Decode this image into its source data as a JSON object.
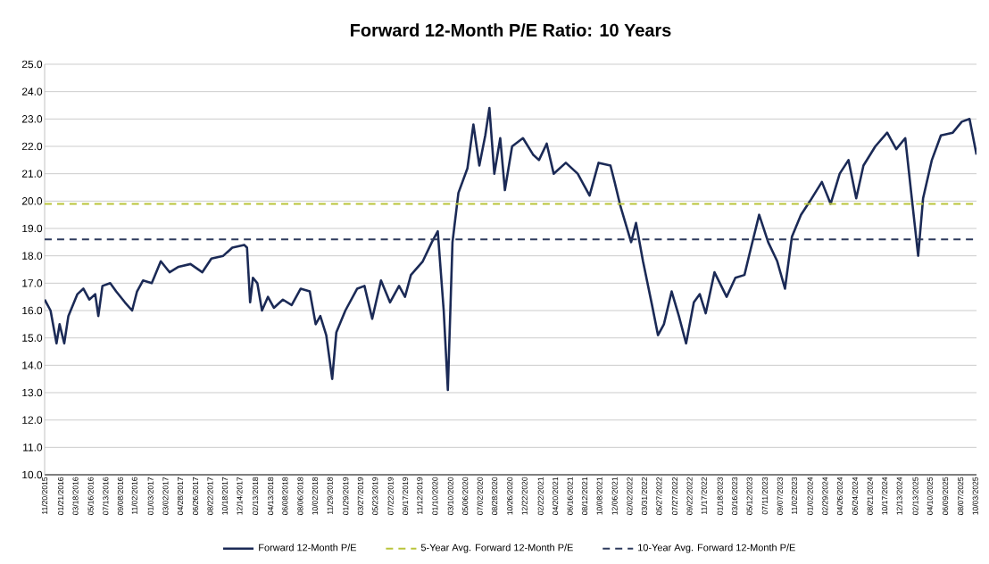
{
  "chart_data": {
    "type": "line",
    "title": "Forward 12-Month P/E Ratio: 10 Years",
    "x": [
      "2015-11-20",
      "2015-12-13",
      "2016-01-05",
      "2016-01-17",
      "2016-02-04",
      "2016-02-20",
      "2016-03-26",
      "2016-04-18",
      "2016-05-11",
      "2016-06-03",
      "2016-06-15",
      "2016-07-01",
      "2016-07-31",
      "2016-08-23",
      "2016-09-26",
      "2016-10-24",
      "2016-11-12",
      "2016-12-05",
      "2017-01-08",
      "2017-02-12",
      "2017-03-18",
      "2017-04-22",
      "2017-06-07",
      "2017-07-23",
      "2017-08-27",
      "2017-10-12",
      "2017-11-16",
      "2018-01-01",
      "2018-01-12",
      "2018-01-24",
      "2018-02-04",
      "2018-02-21",
      "2018-03-11",
      "2018-04-03",
      "2018-04-26",
      "2018-05-31",
      "2018-07-04",
      "2018-08-08",
      "2018-09-12",
      "2018-10-05",
      "2018-10-23",
      "2018-11-15",
      "2018-12-08",
      "2018-12-24",
      "2019-01-28",
      "2019-03-15",
      "2019-04-12",
      "2019-05-12",
      "2019-06-15",
      "2019-07-20",
      "2019-08-24",
      "2019-09-16",
      "2019-10-09",
      "2019-11-24",
      "2019-12-29",
      "2020-01-21",
      "2020-02-13",
      "2020-02-29",
      "2020-03-18",
      "2020-04-10",
      "2020-05-15",
      "2020-06-07",
      "2020-06-30",
      "2020-07-23",
      "2020-08-08",
      "2020-08-27",
      "2020-09-19",
      "2020-10-07",
      "2020-11-04",
      "2020-12-16",
      "2021-01-24",
      "2021-02-16",
      "2021-03-18",
      "2021-04-14",
      "2021-05-31",
      "2021-07-16",
      "2021-08-31",
      "2021-10-05",
      "2021-11-20",
      "2021-12-06",
      "2021-12-29",
      "2022-02-08",
      "2022-02-27",
      "2022-03-26",
      "2022-04-30",
      "2022-05-23",
      "2022-06-15",
      "2022-07-15",
      "2022-08-12",
      "2022-09-09",
      "2022-10-09",
      "2022-11-01",
      "2022-11-24",
      "2022-12-28",
      "2023-02-13",
      "2023-03-19",
      "2023-04-23",
      "2023-05-16",
      "2023-06-19",
      "2023-07-24",
      "2023-08-28",
      "2023-09-27",
      "2023-10-24",
      "2023-11-28",
      "2024-01-02",
      "2024-02-17",
      "2024-03-22",
      "2024-04-26",
      "2024-05-30",
      "2024-06-29",
      "2024-07-27",
      "2024-09-11",
      "2024-10-27",
      "2024-12-01",
      "2025-01-05",
      "2025-01-28",
      "2025-02-24",
      "2025-03-15",
      "2025-04-18",
      "2025-05-23",
      "2025-07-08",
      "2025-08-12",
      "2025-09-11",
      "2025-10-08"
    ],
    "series": [
      {
        "name": "Forward 12-Month P/E",
        "color": "#1b2a56",
        "values": [
          16.4,
          16.0,
          14.8,
          15.5,
          14.8,
          15.8,
          16.6,
          16.8,
          16.4,
          16.6,
          15.8,
          16.9,
          17.0,
          16.7,
          16.3,
          16.0,
          16.7,
          17.1,
          17.0,
          17.8,
          17.4,
          17.6,
          17.7,
          17.4,
          17.9,
          18.0,
          18.3,
          18.4,
          18.3,
          16.3,
          17.2,
          17.0,
          16.0,
          16.5,
          16.1,
          16.4,
          16.2,
          16.8,
          16.7,
          15.5,
          15.8,
          15.1,
          13.5,
          15.2,
          16.0,
          16.8,
          16.9,
          15.7,
          17.1,
          16.3,
          16.9,
          16.5,
          17.3,
          17.8,
          18.5,
          18.9,
          16.0,
          13.1,
          18.5,
          20.3,
          21.2,
          22.8,
          21.3,
          22.4,
          23.4,
          21.0,
          22.3,
          20.4,
          22.0,
          22.3,
          21.7,
          21.5,
          22.1,
          21.0,
          21.4,
          21.0,
          20.2,
          21.4,
          21.3,
          20.7,
          19.8,
          18.5,
          19.2,
          17.8,
          16.2,
          15.1,
          15.5,
          16.7,
          15.8,
          14.8,
          16.3,
          16.6,
          15.9,
          17.4,
          16.5,
          17.2,
          17.3,
          18.2,
          19.5,
          18.5,
          17.8,
          16.8,
          18.7,
          19.5,
          20.0,
          20.7,
          19.9,
          21.0,
          21.5,
          20.1,
          21.3,
          22.0,
          22.5,
          21.9,
          22.3,
          20.3,
          18.0,
          20.1,
          21.5,
          22.4,
          22.5,
          22.9,
          23.0,
          21.7
        ]
      }
    ],
    "ref_lines": [
      {
        "axis": "y",
        "value": 19.9,
        "label": "5-Year Avg. Forward 12-Month P/E",
        "color": "#b9c43a",
        "line_style": "dashed"
      },
      {
        "axis": "y",
        "value": 18.6,
        "label": "10-Year Avg. Forward 12-Month P/E",
        "color": "#2d3a5c",
        "line_style": "dashed"
      }
    ],
    "xlim": [
      "2015-11-20",
      "2025-10-08"
    ],
    "xticks": [
      {
        "value": "2015-11-20",
        "label": "11/20/2015"
      },
      {
        "value": "2016-01-21",
        "label": "01/21/2016"
      },
      {
        "value": "2016-03-18",
        "label": "03/18/2016"
      },
      {
        "value": "2016-05-16",
        "label": "05/16/2016"
      },
      {
        "value": "2016-07-13",
        "label": "07/13/2016"
      },
      {
        "value": "2016-09-08",
        "label": "09/08/2016"
      },
      {
        "value": "2016-11-02",
        "label": "11/02/2016"
      },
      {
        "value": "2017-01-03",
        "label": "01/03/2017"
      },
      {
        "value": "2017-03-02",
        "label": "03/02/2017"
      },
      {
        "value": "2017-04-28",
        "label": "04/28/2017"
      },
      {
        "value": "2017-06-26",
        "label": "06/26/2017"
      },
      {
        "value": "2017-08-22",
        "label": "08/22/2017"
      },
      {
        "value": "2017-10-18",
        "label": "10/18/2017"
      },
      {
        "value": "2017-12-14",
        "label": "12/14/2017"
      },
      {
        "value": "2018-02-13",
        "label": "02/13/2018"
      },
      {
        "value": "2018-04-13",
        "label": "04/13/2018"
      },
      {
        "value": "2018-06-08",
        "label": "06/08/2018"
      },
      {
        "value": "2018-08-06",
        "label": "08/06/2018"
      },
      {
        "value": "2018-10-02",
        "label": "10/02/2018"
      },
      {
        "value": "2018-11-29",
        "label": "11/29/2018"
      },
      {
        "value": "2019-01-29",
        "label": "01/29/2019"
      },
      {
        "value": "2019-03-27",
        "label": "03/27/2019"
      },
      {
        "value": "2019-05-23",
        "label": "05/23/2019"
      },
      {
        "value": "2019-07-22",
        "label": "07/22/2019"
      },
      {
        "value": "2019-09-17",
        "label": "09/17/2019"
      },
      {
        "value": "2019-11-12",
        "label": "11/12/2019"
      },
      {
        "value": "2020-01-10",
        "label": "01/10/2020"
      },
      {
        "value": "2020-03-10",
        "label": "03/10/2020"
      },
      {
        "value": "2020-05-06",
        "label": "05/06/2020"
      },
      {
        "value": "2020-07-02",
        "label": "07/02/2020"
      },
      {
        "value": "2020-08-28",
        "label": "08/28/2020"
      },
      {
        "value": "2020-10-26",
        "label": "10/26/2020"
      },
      {
        "value": "2020-12-22",
        "label": "12/22/2020"
      },
      {
        "value": "2021-02-22",
        "label": "02/22/2021"
      },
      {
        "value": "2021-04-20",
        "label": "04/20/2021"
      },
      {
        "value": "2021-06-16",
        "label": "06/16/2021"
      },
      {
        "value": "2021-08-12",
        "label": "08/12/2021"
      },
      {
        "value": "2021-10-08",
        "label": "10/08/2021"
      },
      {
        "value": "2021-12-06",
        "label": "12/06/2021"
      },
      {
        "value": "2022-02-02",
        "label": "02/02/2022"
      },
      {
        "value": "2022-03-31",
        "label": "03/31/2022"
      },
      {
        "value": "2022-05-27",
        "label": "05/27/2022"
      },
      {
        "value": "2022-07-27",
        "label": "07/27/2022"
      },
      {
        "value": "2022-09-22",
        "label": "09/22/2022"
      },
      {
        "value": "2022-11-17",
        "label": "11/17/2022"
      },
      {
        "value": "2023-01-18",
        "label": "01/18/2023"
      },
      {
        "value": "2023-03-16",
        "label": "03/16/2023"
      },
      {
        "value": "2023-05-12",
        "label": "05/12/2023"
      },
      {
        "value": "2023-07-11",
        "label": "07/11/2023"
      },
      {
        "value": "2023-09-07",
        "label": "09/07/2023"
      },
      {
        "value": "2023-11-02",
        "label": "11/02/2023"
      },
      {
        "value": "2024-01-02",
        "label": "01/02/2024"
      },
      {
        "value": "2024-02-29",
        "label": "02/29/2024"
      },
      {
        "value": "2024-04-26",
        "label": "04/26/2024"
      },
      {
        "value": "2024-06-24",
        "label": "06/24/2024"
      },
      {
        "value": "2024-08-21",
        "label": "08/21/2024"
      },
      {
        "value": "2024-10-17",
        "label": "10/17/2024"
      },
      {
        "value": "2024-12-13",
        "label": "12/13/2024"
      },
      {
        "value": "2025-02-13",
        "label": "02/13/2025"
      },
      {
        "value": "2025-04-10",
        "label": "04/10/2025"
      },
      {
        "value": "2025-06-09",
        "label": "06/09/2025"
      },
      {
        "value": "2025-08-07",
        "label": "08/07/2025"
      },
      {
        "value": "2025-10-03",
        "label": "10/03/2025"
      }
    ],
    "ylim": [
      10,
      25
    ],
    "yticks": [
      {
        "value": 10,
        "label": "10.0"
      },
      {
        "value": 11,
        "label": "11.0"
      },
      {
        "value": 12,
        "label": "12.0"
      },
      {
        "value": 13,
        "label": "13.0"
      },
      {
        "value": 14,
        "label": "14.0"
      },
      {
        "value": 15,
        "label": "15.0"
      },
      {
        "value": 16,
        "label": "16.0"
      },
      {
        "value": 17,
        "label": "17.0"
      },
      {
        "value": 18,
        "label": "18.0"
      },
      {
        "value": 19,
        "label": "19.0"
      },
      {
        "value": 20,
        "label": "20.0"
      },
      {
        "value": 21,
        "label": "21.0"
      },
      {
        "value": 22,
        "label": "22.0"
      },
      {
        "value": 23,
        "label": "23.0"
      },
      {
        "value": 24,
        "label": "24.0"
      },
      {
        "value": 25,
        "label": "25.0"
      }
    ],
    "grid": "y",
    "legend": "bottom",
    "marker": "none",
    "line_style": "solid"
  }
}
